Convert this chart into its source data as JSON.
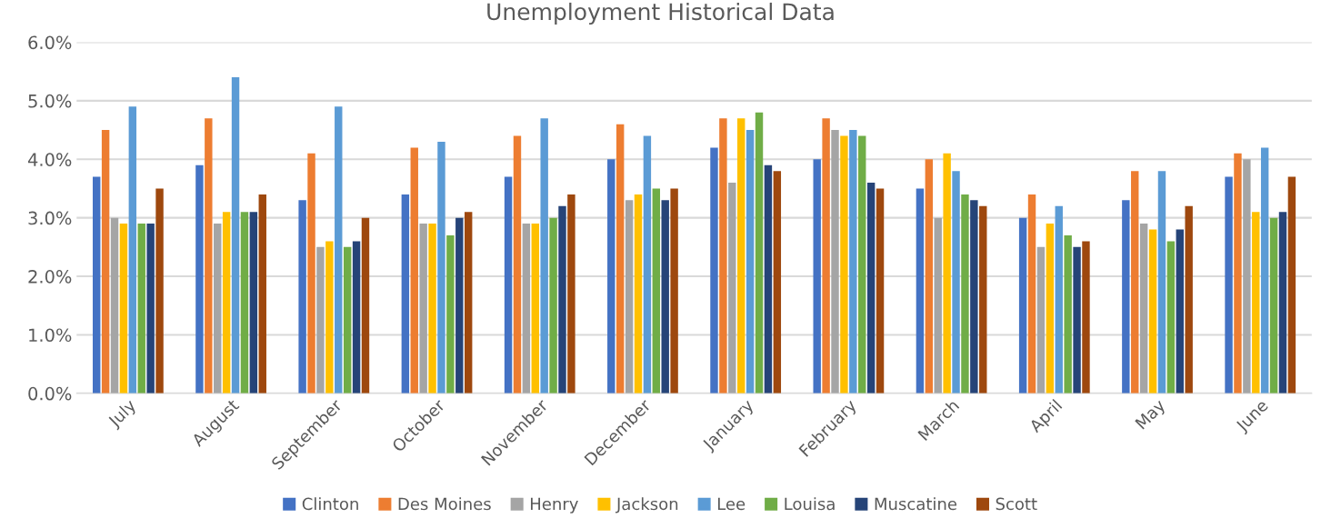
{
  "chart_data": {
    "type": "bar",
    "title": "Unemployment Historical Data",
    "categories": [
      "July",
      "August",
      "September",
      "October",
      "November",
      "December",
      "January",
      "February",
      "March",
      "April",
      "May",
      "June"
    ],
    "series": [
      {
        "name": "Clinton",
        "color": "#4472c4",
        "values": [
          3.7,
          3.9,
          3.3,
          3.4,
          3.7,
          4.0,
          4.2,
          4.0,
          3.5,
          3.0,
          3.3,
          3.7
        ]
      },
      {
        "name": "Des Moines",
        "color": "#ed7d31",
        "values": [
          4.5,
          4.7,
          4.1,
          4.2,
          4.4,
          4.6,
          4.7,
          4.7,
          4.0,
          3.4,
          3.8,
          4.1
        ]
      },
      {
        "name": "Henry",
        "color": "#a5a5a5",
        "values": [
          3.0,
          2.9,
          2.5,
          2.9,
          2.9,
          3.3,
          3.6,
          4.5,
          3.0,
          2.5,
          2.9,
          4.0
        ]
      },
      {
        "name": "Jackson",
        "color": "#ffc000",
        "values": [
          2.9,
          3.1,
          2.6,
          2.9,
          2.9,
          3.4,
          4.7,
          4.4,
          4.1,
          2.9,
          2.8,
          3.1
        ]
      },
      {
        "name": "Lee",
        "color": "#5b9bd5",
        "values": [
          4.9,
          5.4,
          4.9,
          4.3,
          4.7,
          4.4,
          4.5,
          4.5,
          3.8,
          3.2,
          3.8,
          4.2
        ]
      },
      {
        "name": "Louisa",
        "color": "#70ad47",
        "values": [
          2.9,
          3.1,
          2.5,
          2.7,
          3.0,
          3.5,
          4.8,
          4.4,
          3.4,
          2.7,
          2.6,
          3.0
        ]
      },
      {
        "name": "Muscatine",
        "color": "#264478",
        "values": [
          2.9,
          3.1,
          2.6,
          3.0,
          3.2,
          3.3,
          3.9,
          3.6,
          3.3,
          2.5,
          2.8,
          3.1
        ]
      },
      {
        "name": "Scott",
        "color": "#9e480e",
        "values": [
          3.5,
          3.4,
          3.0,
          3.1,
          3.4,
          3.5,
          3.8,
          3.5,
          3.2,
          2.6,
          3.2,
          3.7
        ]
      }
    ],
    "ylim": [
      0,
      6
    ],
    "yticks": [
      {
        "value": 0,
        "label": "0.0%"
      },
      {
        "value": 1,
        "label": "1.0%"
      },
      {
        "value": 2,
        "label": "2.0%"
      },
      {
        "value": 3,
        "label": "3.0%"
      },
      {
        "value": 4,
        "label": "4.0%"
      },
      {
        "value": 5,
        "label": "5.0%"
      },
      {
        "value": 6,
        "label": "6.0%"
      }
    ],
    "grid": "y",
    "legend": "bottom"
  }
}
